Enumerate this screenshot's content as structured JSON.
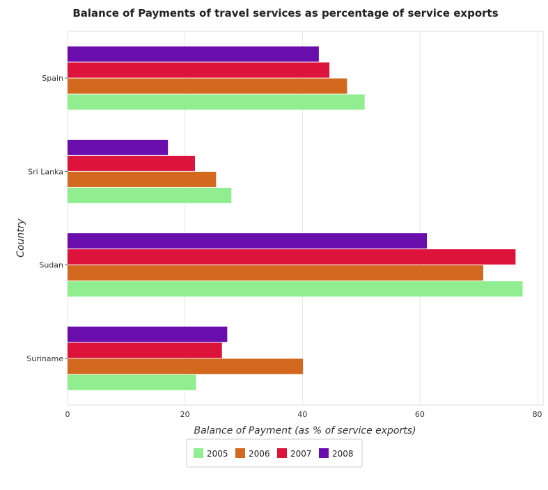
{
  "chart_data": {
    "type": "bar",
    "orientation": "horizontal",
    "title": "Balance of Payments of travel services as percentage of service exports",
    "xlabel": "Balance of Payment (as % of service exports)",
    "ylabel": "Country",
    "xlim": [
      0,
      81
    ],
    "xticks": [
      0,
      20,
      40,
      60,
      80
    ],
    "categories": [
      "Spain",
      "Sri Lanka",
      "Sudan",
      "Suriname"
    ],
    "series": [
      {
        "name": "2005",
        "color": "#90ee90",
        "values": [
          50.6,
          27.9,
          77.5,
          21.9
        ]
      },
      {
        "name": "2006",
        "color": "#d2691e",
        "values": [
          47.6,
          25.3,
          70.8,
          40.1
        ]
      },
      {
        "name": "2007",
        "color": "#dc143c",
        "values": [
          44.6,
          21.7,
          76.3,
          26.3
        ]
      },
      {
        "name": "2008",
        "color": "#6a0dad",
        "values": [
          42.8,
          17.1,
          61.2,
          27.2
        ]
      }
    ],
    "grid": true,
    "legend_position": "bottom"
  }
}
